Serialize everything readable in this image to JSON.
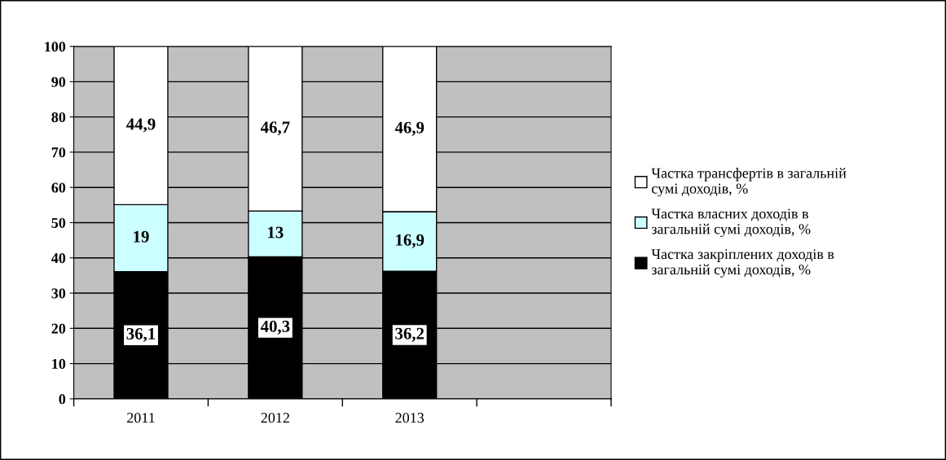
{
  "chart_data": {
    "type": "bar",
    "stacked": true,
    "categories": [
      "2011",
      "2012",
      "2013",
      null
    ],
    "series": [
      {
        "name": "Частка закріплених доходів в загальній сумі доходів, %",
        "color": "#000000",
        "values": [
          36.1,
          40.3,
          36.2,
          null
        ],
        "value_labels": [
          "36,1",
          "40,3",
          "36,2",
          null
        ]
      },
      {
        "name": "Частка власних доходів в загальній сумі доходів, %",
        "color": "#ccffff",
        "values": [
          19,
          13,
          16.9,
          null
        ],
        "value_labels": [
          "19",
          "13",
          "16,9",
          null
        ]
      },
      {
        "name": "Частка трансфертів в загальній сумі доходів, %",
        "color": "#ffffff",
        "values": [
          44.9,
          46.7,
          46.9,
          null
        ],
        "value_labels": [
          "44,9",
          "46,7",
          "46,9",
          null
        ]
      }
    ],
    "ylim": [
      0,
      100
    ],
    "yticks": [
      0,
      10,
      20,
      30,
      40,
      50,
      60,
      70,
      80,
      90,
      100
    ],
    "grid": "y",
    "legend": "right"
  }
}
